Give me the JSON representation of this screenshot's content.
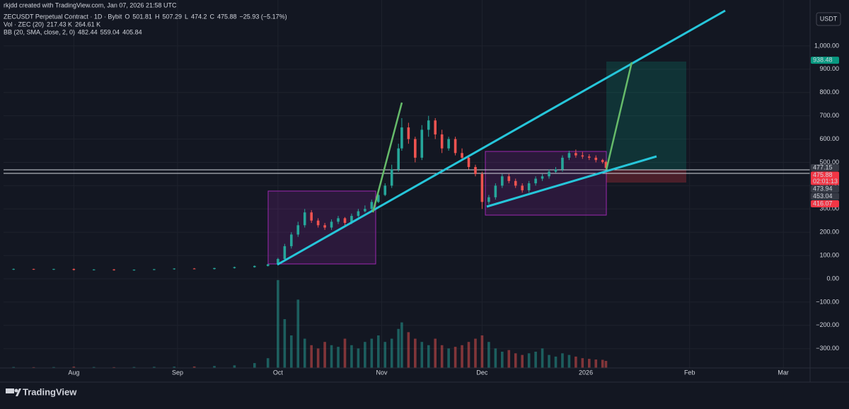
{
  "header": {
    "credit": "rkjdd created with TradingView.com, Jan 07, 2026 21:58 UTC",
    "currency": "USDT",
    "brand": "TradingView"
  },
  "legend": {
    "symbol": "ZECUSDT Perpetual Contract · 1D · Bybit",
    "o_label": "O",
    "open": 501.81,
    "h_label": "H",
    "high": 507.29,
    "l_label": "L",
    "low": 474.2,
    "c_label": "C",
    "close": 475.88,
    "change": "−25.93 (−5.17%)",
    "vol_title": "Vol · ZEC (20)",
    "vol_values": [
      "217.43 K",
      "264.61 K"
    ],
    "bb_title": "BB (20, SMA, close, 2, 0)",
    "bb_values": [
      482.44,
      559.04,
      405.84
    ]
  },
  "chart_data": {
    "type": "candlestick",
    "up_color": "#26a69a",
    "down_color": "#ef5350",
    "x": [
      -18,
      -12,
      -6,
      0,
      6,
      12,
      18,
      24,
      30,
      36,
      42,
      48,
      54,
      58,
      61,
      63,
      65,
      67,
      69,
      71,
      73,
      75,
      77,
      79,
      81,
      83,
      85,
      87,
      89,
      91,
      93,
      95,
      97,
      98,
      100,
      102,
      104,
      106,
      108,
      110,
      112,
      114,
      116,
      118,
      120,
      122,
      124,
      126,
      128,
      130,
      132,
      134,
      136,
      138,
      140,
      142,
      144,
      146,
      148,
      150,
      152,
      154,
      156,
      158,
      159
    ],
    "open": [
      41,
      42,
      40,
      42,
      38,
      40,
      37,
      39,
      41,
      44,
      42,
      46,
      50,
      55,
      62,
      85,
      140,
      190,
      230,
      285,
      250,
      230,
      220,
      245,
      260,
      240,
      270,
      290,
      300,
      330,
      360,
      400,
      470,
      560,
      650,
      600,
      520,
      640,
      680,
      620,
      560,
      600,
      540,
      520,
      480,
      450,
      330,
      350,
      400,
      440,
      420,
      400,
      380,
      410,
      430,
      440,
      460,
      470,
      520,
      540,
      530,
      525,
      520,
      510,
      501.81
    ],
    "high": [
      44,
      43,
      43,
      44,
      41,
      42,
      40,
      42,
      45,
      46,
      47,
      52,
      57,
      64,
      90,
      150,
      200,
      245,
      300,
      295,
      260,
      240,
      255,
      270,
      265,
      280,
      300,
      315,
      340,
      370,
      410,
      490,
      580,
      690,
      670,
      610,
      660,
      700,
      690,
      640,
      610,
      610,
      560,
      530,
      490,
      460,
      360,
      410,
      450,
      450,
      430,
      410,
      420,
      440,
      450,
      470,
      480,
      530,
      550,
      555,
      545,
      535,
      530,
      515,
      507.29
    ],
    "low": [
      38,
      39,
      38,
      36,
      36,
      35,
      35,
      37,
      39,
      41,
      40,
      44,
      48,
      53,
      58,
      80,
      130,
      180,
      220,
      240,
      220,
      210,
      210,
      235,
      230,
      235,
      265,
      285,
      295,
      325,
      355,
      390,
      460,
      550,
      580,
      500,
      510,
      610,
      600,
      540,
      550,
      530,
      510,
      470,
      440,
      300,
      320,
      340,
      390,
      410,
      390,
      370,
      370,
      400,
      420,
      430,
      455,
      460,
      510,
      520,
      515,
      510,
      500,
      495,
      474.2
    ],
    "close": [
      42,
      40,
      42,
      38,
      40,
      37,
      39,
      41,
      44,
      42,
      46,
      50,
      55,
      62,
      85,
      140,
      190,
      230,
      285,
      250,
      230,
      220,
      245,
      260,
      240,
      270,
      290,
      300,
      330,
      360,
      400,
      470,
      560,
      650,
      600,
      520,
      640,
      680,
      620,
      560,
      600,
      540,
      520,
      480,
      450,
      330,
      350,
      400,
      440,
      420,
      400,
      380,
      410,
      430,
      440,
      460,
      470,
      520,
      540,
      530,
      525,
      520,
      510,
      501.81,
      475.88
    ],
    "volume": [
      30,
      25,
      28,
      40,
      30,
      25,
      30,
      35,
      40,
      45,
      60,
      80,
      150,
      300,
      2700,
      1500,
      1000,
      2100,
      900,
      700,
      600,
      800,
      700,
      650,
      900,
      700,
      600,
      800,
      900,
      1000,
      800,
      900,
      1200,
      1400,
      1100,
      900,
      800,
      700,
      900,
      700,
      600,
      650,
      700,
      800,
      900,
      1000,
      800,
      600,
      500,
      550,
      450,
      400,
      450,
      500,
      600,
      400,
      350,
      450,
      400,
      350,
      300,
      280,
      260,
      250,
      217.43
    ],
    "xlim": [
      -21,
      220
    ],
    "xticks": [
      {
        "value": 0,
        "label": "Aug"
      },
      {
        "value": 31,
        "label": "Sep"
      },
      {
        "value": 61,
        "label": "Oct"
      },
      {
        "value": 92,
        "label": "Nov"
      },
      {
        "value": 122,
        "label": "Dec"
      },
      {
        "value": 153,
        "label": "2026"
      },
      {
        "value": 184,
        "label": "Feb"
      },
      {
        "value": 212,
        "label": "Mar"
      }
    ],
    "ylim": [
      -383,
      1173
    ],
    "yticks": [
      {
        "value": 1000,
        "label": "1,000.00"
      },
      {
        "value": 900,
        "label": "900.00"
      },
      {
        "value": 800,
        "label": "800.00"
      },
      {
        "value": 700,
        "label": "700.00"
      },
      {
        "value": 600,
        "label": "600.00"
      },
      {
        "value": 500,
        "label": "500.00"
      },
      {
        "value": 400,
        "label": "400.00"
      },
      {
        "value": 300,
        "label": "300.00"
      },
      {
        "value": 200,
        "label": "200.00"
      },
      {
        "value": 100,
        "label": "100.00"
      },
      {
        "value": 0,
        "label": "0.00"
      },
      {
        "value": -100,
        "label": "−100.00"
      },
      {
        "value": -200,
        "label": "−200.00"
      },
      {
        "value": -300,
        "label": "−300.00"
      }
    ],
    "grid": true,
    "price_tags": [
      {
        "value": 938.48,
        "color": "#089981"
      },
      {
        "value": 477.15,
        "color": "#363a45"
      },
      {
        "value": 475.88,
        "color": "#f23645"
      },
      {
        "value": 473.94,
        "color": "#363a45"
      },
      {
        "value": 453.04,
        "color": "#363a45"
      },
      {
        "value": 416.07,
        "color": "#f23645"
      }
    ],
    "countdown": "02:01:13"
  }
}
